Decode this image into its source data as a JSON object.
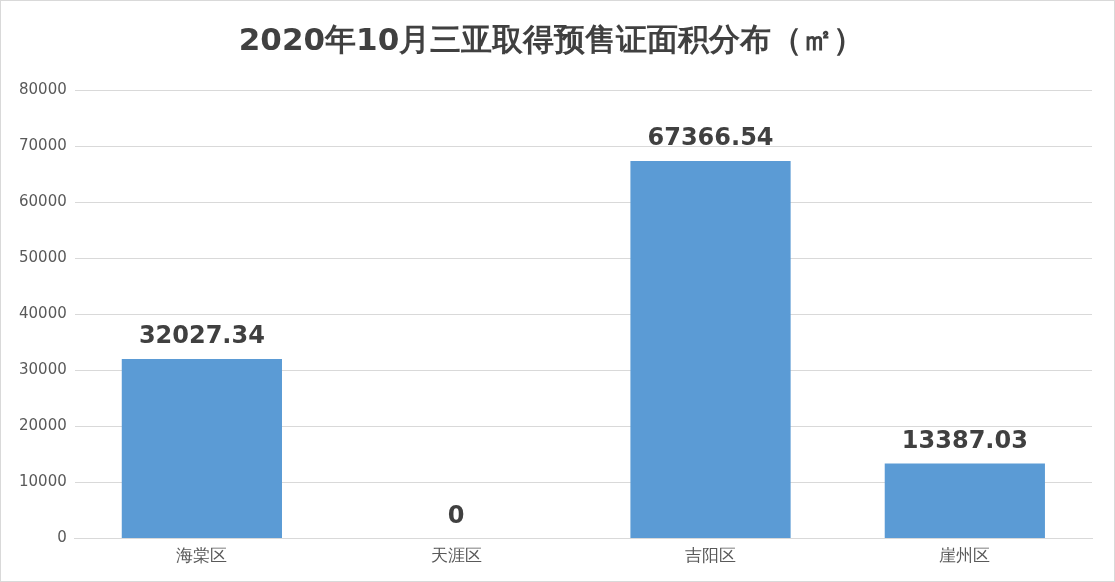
{
  "chart_data": {
    "type": "bar",
    "title": "2020年10月三亚取得预售证面积分布（㎡）",
    "categories": [
      "海棠区",
      "天涯区",
      "吉阳区",
      "崖州区"
    ],
    "values": [
      32027.34,
      0,
      67366.54,
      13387.03
    ],
    "color": "#5b9bd5",
    "ylim": [
      0,
      80000
    ],
    "yticks": [
      0,
      10000,
      20000,
      30000,
      40000,
      50000,
      60000,
      70000,
      80000
    ],
    "grid": "y",
    "data_labels": true
  }
}
